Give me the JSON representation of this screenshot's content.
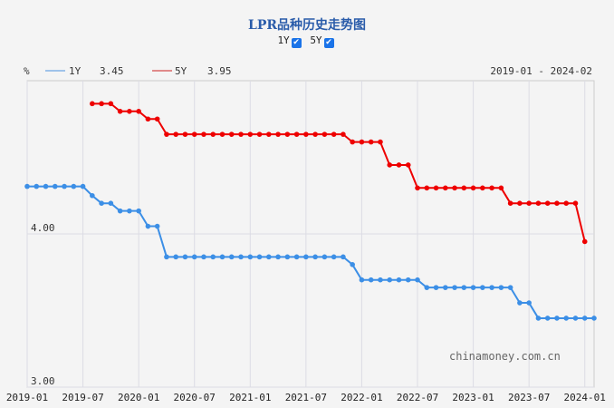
{
  "chart_data": {
    "type": "line",
    "title": "LPR品种历史走势图",
    "toggles": [
      {
        "label": "1Y",
        "checked": true
      },
      {
        "label": "5Y",
        "checked": true
      }
    ],
    "unit": "%",
    "date_range": "2019-01 - 2024-02",
    "watermark": "chinamoney.com.cn",
    "ylim": [
      3.0,
      5.0
    ],
    "y_ticks": [
      "3.00",
      "4.00"
    ],
    "x_ticks": [
      "2019-01",
      "2019-07",
      "2020-01",
      "2020-07",
      "2021-01",
      "2021-07",
      "2022-01",
      "2022-07",
      "2023-01",
      "2023-07",
      "2024-01"
    ],
    "xlim": [
      "2019-01",
      "2024-02"
    ],
    "grid": true,
    "legend_position": "top-left",
    "series": [
      {
        "name": "1Y",
        "latest": "3.45",
        "color": "#3c8fe6",
        "legend_color": "#9fc3ea",
        "start": "2019-01",
        "values": [
          4.31,
          4.31,
          4.31,
          4.31,
          4.31,
          4.31,
          4.31,
          4.25,
          4.2,
          4.2,
          4.15,
          4.15,
          4.15,
          4.05,
          4.05,
          3.85,
          3.85,
          3.85,
          3.85,
          3.85,
          3.85,
          3.85,
          3.85,
          3.85,
          3.85,
          3.85,
          3.85,
          3.85,
          3.85,
          3.85,
          3.85,
          3.85,
          3.85,
          3.85,
          3.85,
          3.8,
          3.7,
          3.7,
          3.7,
          3.7,
          3.7,
          3.7,
          3.7,
          3.65,
          3.65,
          3.65,
          3.65,
          3.65,
          3.65,
          3.65,
          3.65,
          3.65,
          3.65,
          3.55,
          3.55,
          3.45,
          3.45,
          3.45,
          3.45,
          3.45,
          3.45,
          3.45
        ]
      },
      {
        "name": "5Y",
        "latest": "3.95",
        "color": "#ee0000",
        "legend_color": "#e08a8a",
        "start": "2019-08",
        "values": [
          4.85,
          4.85,
          4.85,
          4.8,
          4.8,
          4.8,
          4.75,
          4.75,
          4.65,
          4.65,
          4.65,
          4.65,
          4.65,
          4.65,
          4.65,
          4.65,
          4.65,
          4.65,
          4.65,
          4.65,
          4.65,
          4.65,
          4.65,
          4.65,
          4.65,
          4.65,
          4.65,
          4.65,
          4.6,
          4.6,
          4.6,
          4.6,
          4.45,
          4.45,
          4.45,
          4.3,
          4.3,
          4.3,
          4.3,
          4.3,
          4.3,
          4.3,
          4.3,
          4.3,
          4.3,
          4.2,
          4.2,
          4.2,
          4.2,
          4.2,
          4.2,
          4.2,
          4.2,
          3.95
        ]
      }
    ]
  }
}
